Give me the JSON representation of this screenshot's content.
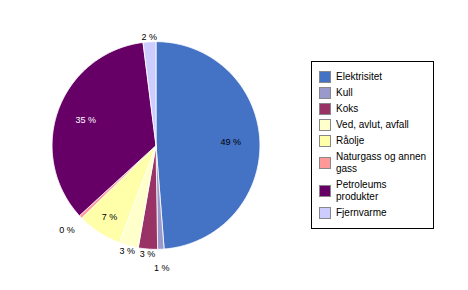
{
  "chart_data": {
    "type": "pie",
    "categories": [
      "Elektrisitet",
      "Kull",
      "Koks",
      "Ved, avlut, avfall",
      "Råolje",
      "Naturgass og annen\ngass",
      "Petroleums\nprodukter",
      "Fjernvarme"
    ],
    "values": [
      49,
      1,
      3,
      3,
      7,
      0.5,
      35,
      2
    ],
    "value_labels": [
      "49 %",
      "1 %",
      "3 %",
      "3 %",
      "7 %",
      "0 %",
      "35 %",
      "2 %"
    ],
    "colors": [
      "#4472c4",
      "#9999cc",
      "#993366",
      "#ffffcc",
      "#ffffaa",
      "#ff9999",
      "#660066",
      "#ccccff"
    ],
    "data_labels": true,
    "legend": "right"
  }
}
